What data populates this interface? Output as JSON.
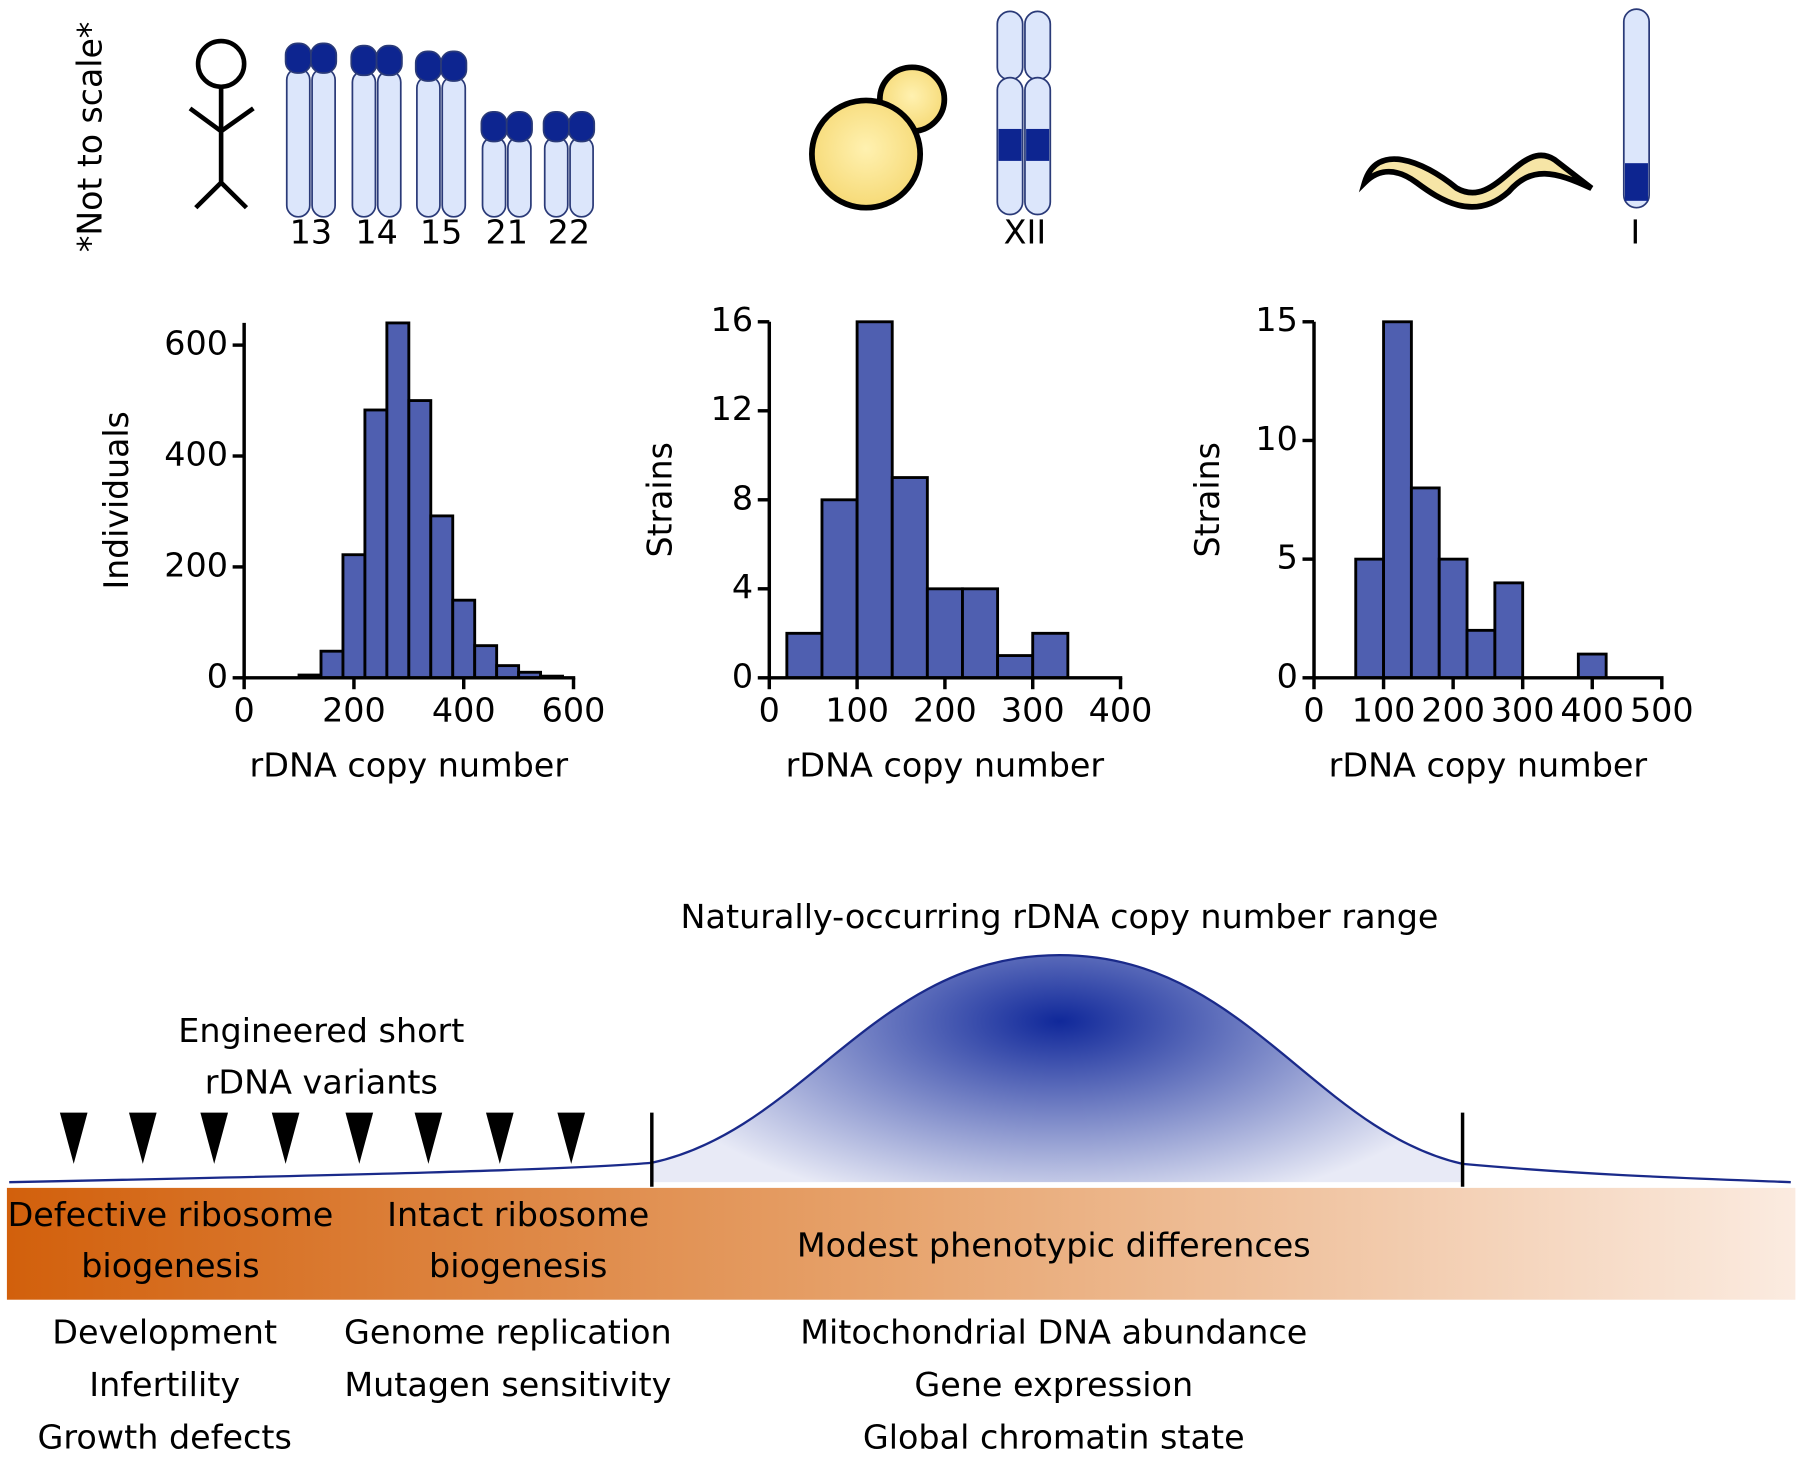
{
  "chart_data": [
    {
      "type": "histogram",
      "xlabel": "rDNA copy number",
      "ylabel": "Individuals",
      "bins": [
        100,
        140,
        180,
        220,
        260,
        300,
        340,
        380,
        420,
        460,
        500,
        540,
        580
      ],
      "values": [
        5,
        48,
        222,
        483,
        640,
        500,
        292,
        140,
        58,
        22,
        10,
        3
      ],
      "color": "#4f5fb0",
      "xlim": [
        0,
        600
      ],
      "xticks": [
        0,
        200,
        400,
        600
      ],
      "ylim": [
        0,
        640
      ],
      "yticks": [
        0,
        200,
        400,
        600
      ]
    },
    {
      "type": "histogram",
      "xlabel": "rDNA copy number",
      "ylabel": "Strains",
      "bins": [
        20,
        60,
        100,
        140,
        180,
        220,
        260,
        300,
        340
      ],
      "values": [
        2,
        8,
        16,
        9,
        4,
        4,
        1,
        2
      ],
      "color": "#4f5fb0",
      "xlim": [
        0,
        400
      ],
      "xticks": [
        0,
        100,
        200,
        300,
        400
      ],
      "ylim": [
        0,
        16
      ],
      "yticks": [
        0,
        4,
        8,
        12,
        16
      ]
    },
    {
      "type": "histogram",
      "xlabel": "rDNA copy number",
      "ylabel": "Strains",
      "bins": [
        60,
        100,
        140,
        180,
        220,
        260,
        300,
        340,
        380,
        420
      ],
      "values": [
        5,
        15,
        8,
        5,
        2,
        4,
        0,
        0,
        1
      ],
      "color": "#4f5fb0",
      "xlim": [
        0,
        500
      ],
      "xticks": [
        0,
        100,
        200,
        300,
        400,
        500
      ],
      "ylim": [
        0,
        15
      ],
      "yticks": [
        0,
        5,
        10,
        15
      ]
    }
  ],
  "diagram": {
    "note": "*Not to scale*",
    "human_chromosomes": [
      "13",
      "14",
      "15",
      "21",
      "22"
    ],
    "yeast_chromosome": "XII",
    "worm_chromosome": "I",
    "range_title": "Naturally-occurring rDNA copy number range",
    "engineered": [
      "Engineered short",
      "rDNA variants"
    ],
    "zones": [
      {
        "label": [
          "Defective ribosome",
          "biogenesis"
        ],
        "effects": [
          "Development",
          "Infertility",
          "Growth defects"
        ]
      },
      {
        "label": [
          "Intact ribosome",
          "biogenesis"
        ],
        "effects": [
          "Genome replication",
          "Mutagen sensitivity"
        ]
      },
      {
        "label": [
          "Modest phenotypic differences"
        ],
        "effects": [
          "Mitochondrial DNA abundance",
          "Gene expression",
          "Global chromatin state"
        ]
      }
    ]
  }
}
